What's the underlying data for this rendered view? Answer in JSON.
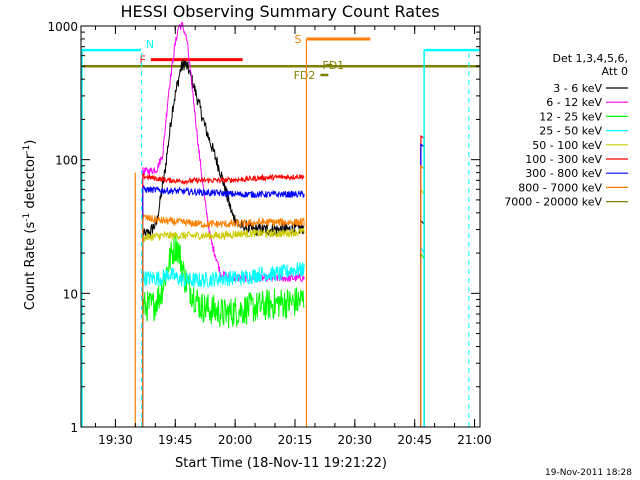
{
  "chart_data": {
    "type": "line",
    "title": "HESSI Observing Summary Count Rates",
    "xlabel": "Start Time (18-Nov-11 19:21:22)",
    "ylabel_main": "Count Rate (s",
    "ylabel_sup1": "-1",
    "ylabel_mid": " detector",
    "ylabel_sup2": "-1",
    "ylabel_end": ")",
    "y_scale": "log",
    "ylim": [
      1,
      1000
    ],
    "xlim_minutes": [
      0,
      100
    ],
    "x_ticks": [
      {
        "m": 8.63,
        "label": "19:30"
      },
      {
        "m": 23.63,
        "label": "19:45"
      },
      {
        "m": 38.63,
        "label": "20:00"
      },
      {
        "m": 53.63,
        "label": "20:15"
      },
      {
        "m": 68.63,
        "label": "20:30"
      },
      {
        "m": 83.63,
        "label": "20:45"
      },
      {
        "m": 98.63,
        "label": "21:00"
      }
    ],
    "y_ticks": [
      {
        "v": 1,
        "label": "1"
      },
      {
        "v": 10,
        "label": "10"
      },
      {
        "v": 100,
        "label": "100"
      },
      {
        "v": 1000,
        "label": "1000"
      }
    ],
    "legend_header": [
      "Det 1,3,4,5,6,",
      "Att 0"
    ],
    "series": [
      {
        "name": "3 - 6 keV",
        "color": "#000000",
        "key": "s3",
        "noise": 0.05,
        "points": [
          [
            15.5,
            27
          ],
          [
            17,
            28
          ],
          [
            19,
            34
          ],
          [
            21,
            80
          ],
          [
            23,
            250
          ],
          [
            25,
            480
          ],
          [
            26,
            530
          ],
          [
            27,
            470
          ],
          [
            29,
            300
          ],
          [
            31,
            180
          ],
          [
            33,
            120
          ],
          [
            35,
            80
          ],
          [
            36.5,
            55
          ],
          [
            38,
            38
          ],
          [
            40,
            32
          ],
          [
            43,
            30
          ],
          [
            47,
            30
          ],
          [
            52,
            30
          ],
          [
            56,
            31
          ]
        ],
        "late": [
          [
            85.2,
            35
          ],
          [
            86,
            33
          ]
        ]
      },
      {
        "name": "6 - 12 keV",
        "color": "#ff00ff",
        "key": "s6",
        "noise": 0.03,
        "points": [
          [
            15.5,
            82
          ],
          [
            17,
            82
          ],
          [
            19,
            85
          ],
          [
            20.5,
            110
          ],
          [
            22,
            330
          ],
          [
            23.5,
            700
          ],
          [
            24.5,
            1000
          ],
          [
            25.5,
            1000
          ],
          [
            26.5,
            800
          ],
          [
            28,
            320
          ],
          [
            29.5,
            120
          ],
          [
            31,
            50
          ],
          [
            32.5,
            25
          ],
          [
            34,
            18
          ],
          [
            35,
            14
          ],
          [
            38,
            13
          ],
          [
            45,
            13
          ],
          [
            52,
            13
          ],
          [
            56,
            13
          ]
        ],
        "late": [
          [
            85.2,
            130
          ],
          [
            86,
            125
          ]
        ]
      },
      {
        "name": "12 - 25 keV",
        "color": "#00ff00",
        "key": "s12",
        "noise": 0.12,
        "points": [
          [
            15.5,
            8
          ],
          [
            18,
            8
          ],
          [
            20,
            10
          ],
          [
            21.5,
            15
          ],
          [
            23,
            21
          ],
          [
            24,
            23
          ],
          [
            25,
            18
          ],
          [
            26,
            13
          ],
          [
            28,
            10
          ],
          [
            30,
            8
          ],
          [
            33,
            7.5
          ],
          [
            36,
            7
          ],
          [
            40,
            7.5
          ],
          [
            45,
            8
          ],
          [
            50,
            8.5
          ],
          [
            53,
            8.5
          ],
          [
            56,
            9
          ]
        ],
        "late": [
          [
            85.2,
            20
          ],
          [
            86,
            18
          ]
        ]
      },
      {
        "name": "25 - 50 keV",
        "color": "#00ffff",
        "key": "s25",
        "noise": 0.06,
        "points": [
          [
            15.5,
            13
          ],
          [
            18,
            13
          ],
          [
            20,
            13
          ],
          [
            22,
            14
          ],
          [
            24,
            13
          ],
          [
            26,
            12.5
          ],
          [
            30,
            12.5
          ],
          [
            35,
            13
          ],
          [
            40,
            13
          ],
          [
            45,
            14
          ],
          [
            50,
            14
          ],
          [
            53,
            15
          ],
          [
            56,
            15
          ]
        ],
        "late": [
          [
            85.2,
            22
          ],
          [
            86,
            20
          ]
        ]
      },
      {
        "name": "50 - 100 keV",
        "color": "#cccc00",
        "key": "s50",
        "noise": 0.03,
        "points": [
          [
            15.5,
            26
          ],
          [
            20,
            27
          ],
          [
            25,
            27
          ],
          [
            30,
            27
          ],
          [
            35,
            27
          ],
          [
            40,
            28
          ],
          [
            45,
            28
          ],
          [
            50,
            28
          ],
          [
            56,
            29
          ]
        ],
        "late": [
          [
            85.2,
            60
          ],
          [
            86,
            55
          ]
        ]
      },
      {
        "name": "100 - 300 keV",
        "color": "#ff0000",
        "key": "s100",
        "noise": 0.02,
        "points": [
          [
            15.5,
            75
          ],
          [
            18,
            73
          ],
          [
            22,
            70
          ],
          [
            26,
            69
          ],
          [
            30,
            70
          ],
          [
            35,
            70
          ],
          [
            40,
            71
          ],
          [
            45,
            73
          ],
          [
            50,
            74
          ],
          [
            56,
            75
          ]
        ],
        "late": [
          [
            85.2,
            150
          ],
          [
            86,
            145
          ]
        ]
      },
      {
        "name": "300 - 800 keV",
        "color": "#0000ff",
        "key": "s300",
        "noise": 0.025,
        "points": [
          [
            15.5,
            60
          ],
          [
            20,
            59
          ],
          [
            25,
            58
          ],
          [
            30,
            57
          ],
          [
            35,
            56
          ],
          [
            40,
            55
          ],
          [
            45,
            55
          ],
          [
            50,
            55
          ],
          [
            56,
            55
          ]
        ],
        "late": [
          [
            85.2,
            130
          ],
          [
            86,
            125
          ]
        ]
      },
      {
        "name": "800 - 7000 keV",
        "color": "#ff8000",
        "key": "s800",
        "noise": 0.03,
        "points": [
          [
            15.5,
            37
          ],
          [
            20,
            35
          ],
          [
            25,
            34
          ],
          [
            30,
            33
          ],
          [
            35,
            33
          ],
          [
            40,
            33
          ],
          [
            45,
            34
          ],
          [
            50,
            34
          ],
          [
            56,
            34
          ]
        ],
        "late": [
          [
            85.2,
            90
          ],
          [
            86,
            85
          ]
        ]
      },
      {
        "name": "7000 - 20000 keV",
        "color": "#808000",
        "key": "s7000",
        "noise": 0.0,
        "points": [],
        "late": []
      }
    ],
    "flags": [
      {
        "label": "N",
        "color": "#00ffff",
        "x1": 0,
        "x2": 15,
        "level": 660
      },
      {
        "label": "",
        "color": "#00ffff",
        "x1": 86,
        "x2": 100,
        "level": 660
      },
      {
        "label": "F",
        "color": "#ff0000",
        "x1": 17.5,
        "x2": 40.5,
        "level": 560
      },
      {
        "label": "S",
        "color": "#ff8000",
        "x1": 56.5,
        "x2": 72.5,
        "level": 800
      },
      {
        "label": "FD1",
        "color": "#808000",
        "x1": 61.5,
        "x2": 63,
        "level": 510
      },
      {
        "label": "FD2",
        "color": "#808000",
        "x1": 60.0,
        "x2": 62.0,
        "level": 430
      },
      {
        "label": "",
        "color": "#808000",
        "x1": 0,
        "x2": 100,
        "level": 500
      }
    ],
    "vlines_dashed": [
      15.2,
      97.2
    ],
    "vlines_solid_cyan": [
      0,
      86
    ],
    "vlines_orange": [
      13.6,
      56.5
    ],
    "footer_date": "19-Nov-2011 18:28"
  }
}
